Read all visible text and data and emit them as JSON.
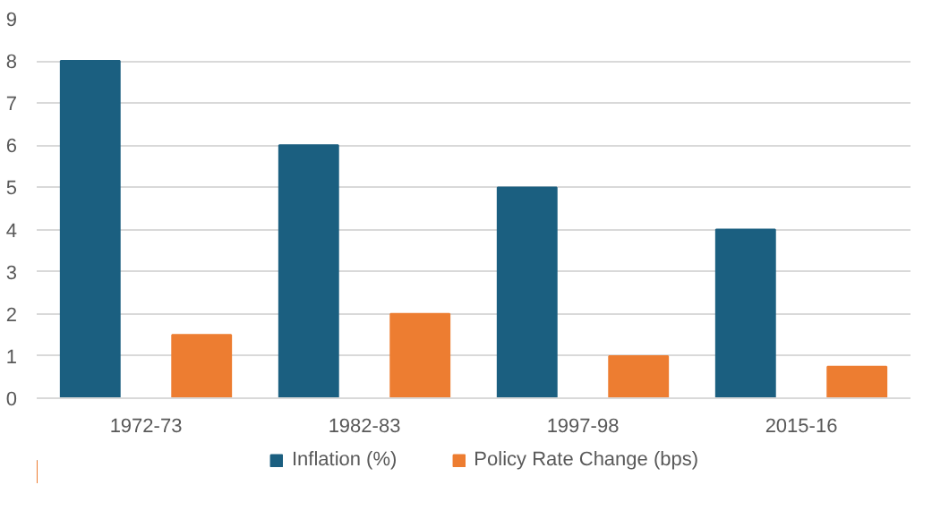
{
  "chart_data": {
    "type": "bar",
    "categories": [
      "1972-73",
      "1982-83",
      "1997-98",
      "2015-16"
    ],
    "series": [
      {
        "name": "Inflation (%)",
        "color": "#1b5f80",
        "values": [
          8,
          6,
          5,
          4
        ]
      },
      {
        "name": "Policy Rate Change (bps)",
        "color": "#ed7d31",
        "values": [
          1.5,
          2,
          1,
          0.75
        ]
      }
    ],
    "ylim": [
      0,
      9
    ],
    "yticks": [
      0,
      1,
      2,
      3,
      4,
      5,
      6,
      7,
      8,
      9
    ],
    "grid": "y",
    "legend": "bottom"
  }
}
